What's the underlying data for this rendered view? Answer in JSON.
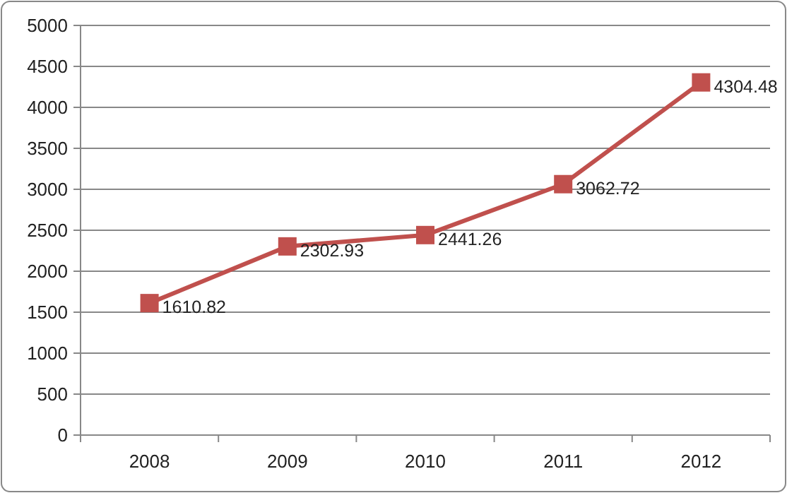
{
  "chart_data": {
    "type": "line",
    "categories": [
      "2008",
      "2009",
      "2010",
      "2011",
      "2012"
    ],
    "series": [
      {
        "color": "#c0504d",
        "values": [
          1610.82,
          2302.93,
          2441.26,
          3062.72,
          4304.48
        ]
      }
    ],
    "ylim": [
      0,
      5000
    ],
    "yticks": [
      0,
      500,
      1000,
      1500,
      2000,
      2500,
      3000,
      3500,
      4000,
      4500,
      5000
    ],
    "grid": "y",
    "marker": "square",
    "line_style": "solid",
    "data_labels": true
  }
}
